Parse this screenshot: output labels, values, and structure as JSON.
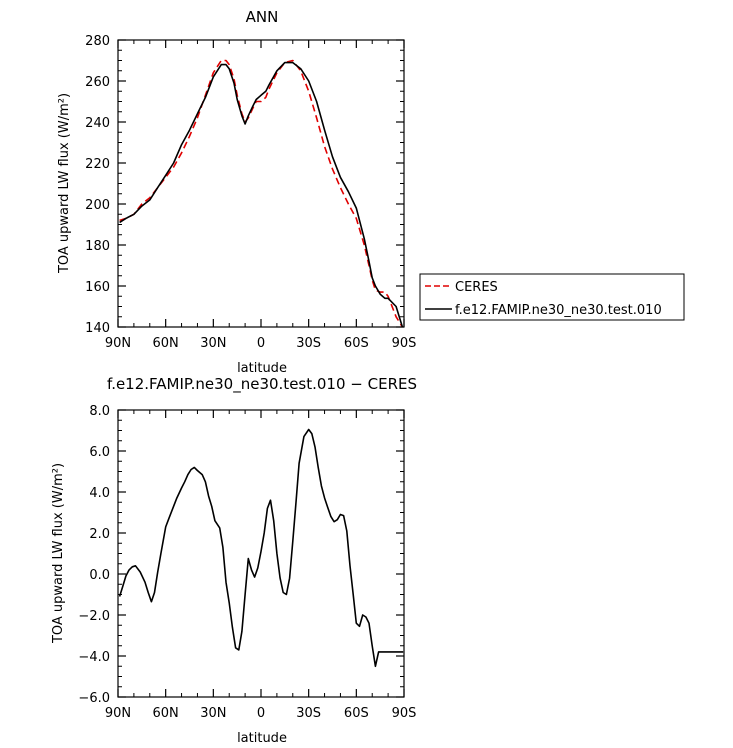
{
  "chart_data": [
    {
      "type": "line",
      "title": "ANN",
      "xlabel": "latitude",
      "ylabel": "TOA upward LW flux (W/m²)",
      "xlim": [
        90,
        -90
      ],
      "ylim": [
        140,
        280
      ],
      "x_ticks": [
        {
          "value": 90,
          "label": "90N"
        },
        {
          "value": 60,
          "label": "60N"
        },
        {
          "value": 30,
          "label": "30N"
        },
        {
          "value": 0,
          "label": "0"
        },
        {
          "value": -30,
          "label": "30S"
        },
        {
          "value": -60,
          "label": "60S"
        },
        {
          "value": -90,
          "label": "90S"
        }
      ],
      "y_ticks": [
        {
          "value": 140,
          "label": "140"
        },
        {
          "value": 160,
          "label": "160"
        },
        {
          "value": 180,
          "label": "180"
        },
        {
          "value": 200,
          "label": "200"
        },
        {
          "value": 220,
          "label": "220"
        },
        {
          "value": 240,
          "label": "240"
        },
        {
          "value": 260,
          "label": "260"
        },
        {
          "value": 280,
          "label": "280"
        }
      ],
      "legend_position": "right",
      "series": [
        {
          "name": "CERES",
          "color": "#e00000",
          "dash": "dashed",
          "x": [
            89,
            85,
            80,
            75,
            70,
            65,
            60,
            55,
            50,
            45,
            40,
            35,
            30,
            25,
            22,
            20,
            17,
            15,
            12,
            10,
            8,
            5,
            3,
            0,
            -3,
            -5,
            -10,
            -15,
            -20,
            -25,
            -30,
            -35,
            -40,
            -45,
            -50,
            -55,
            -60,
            -65,
            -68,
            -70,
            -72,
            -75,
            -78,
            -80,
            -85,
            -89
          ],
          "y": [
            192,
            193,
            195,
            200,
            203,
            208,
            213,
            218,
            225,
            233,
            242,
            253,
            264,
            270,
            270,
            268,
            261,
            253,
            244,
            240,
            242,
            247,
            250,
            250,
            252,
            256,
            264,
            269,
            270,
            265,
            255,
            242,
            228,
            217,
            208,
            200,
            193,
            180,
            170,
            163,
            158,
            157,
            157,
            155,
            145,
            140
          ]
        },
        {
          "name": "f.e12.FAMIP.ne30_ne30.test.010",
          "color": "#000000",
          "dash": "solid",
          "x": [
            89,
            85,
            80,
            75,
            70,
            65,
            60,
            55,
            50,
            45,
            40,
            35,
            30,
            25,
            22,
            20,
            17,
            15,
            12,
            10,
            8,
            5,
            3,
            0,
            -3,
            -5,
            -10,
            -15,
            -20,
            -25,
            -30,
            -35,
            -40,
            -45,
            -50,
            -55,
            -60,
            -65,
            -68,
            -70,
            -72,
            -75,
            -78,
            -80,
            -85,
            -89
          ],
          "y": [
            191,
            193,
            195,
            199,
            202,
            208,
            214,
            220,
            229,
            236,
            244,
            252,
            262,
            268,
            268,
            266,
            259,
            251,
            243,
            239,
            243,
            248,
            251,
            253,
            255,
            258,
            265,
            269,
            269,
            266,
            260,
            250,
            236,
            223,
            213,
            206,
            198,
            183,
            172,
            164,
            160,
            156,
            154,
            154,
            150,
            140
          ]
        }
      ]
    },
    {
      "type": "line",
      "title": "f.e12.FAMIP.ne30_ne30.test.010 − CERES",
      "xlabel": "latitude",
      "ylabel": "TOA upward LW flux (W/m²)",
      "xlim": [
        90,
        -90
      ],
      "ylim": [
        -6,
        8
      ],
      "x_ticks": [
        {
          "value": 90,
          "label": "90N"
        },
        {
          "value": 60,
          "label": "60N"
        },
        {
          "value": 30,
          "label": "30N"
        },
        {
          "value": 0,
          "label": "0"
        },
        {
          "value": -30,
          "label": "30S"
        },
        {
          "value": -60,
          "label": "60S"
        },
        {
          "value": -90,
          "label": "90S"
        }
      ],
      "y_ticks": [
        {
          "value": -6,
          "label": "−6.0"
        },
        {
          "value": -4,
          "label": "−4.0"
        },
        {
          "value": -2,
          "label": "−2.0"
        },
        {
          "value": 0,
          "label": "0.0"
        },
        {
          "value": 2,
          "label": "2.0"
        },
        {
          "value": 4,
          "label": "4.0"
        },
        {
          "value": 6,
          "label": "6.0"
        },
        {
          "value": 8,
          "label": "8.0"
        }
      ],
      "series": [
        {
          "name": "",
          "color": "#000000",
          "dash": "solid",
          "x": [
            89,
            87,
            85,
            83,
            81,
            79,
            76,
            73,
            71,
            69,
            67,
            65,
            63,
            60,
            58,
            55,
            53,
            50,
            48,
            46,
            44,
            42,
            40,
            37,
            35,
            33,
            31,
            29,
            26,
            24,
            22,
            20,
            18,
            16,
            14,
            12,
            10,
            8,
            6,
            4,
            2,
            0,
            -2,
            -4,
            -6,
            -8,
            -10,
            -12,
            -14,
            -16,
            -18,
            -20,
            -22,
            -24,
            -27,
            -30,
            -32,
            -34,
            -36,
            -38,
            -40,
            -42,
            -44,
            -46,
            -48,
            -50,
            -52,
            -54,
            -56,
            -58,
            -60,
            -62,
            -64,
            -66,
            -68,
            -70,
            -72,
            -74,
            -76,
            -78,
            -80,
            -82,
            -84,
            -86,
            -88,
            -89.5
          ],
          "y": [
            -1.1,
            -0.6,
            -0.1,
            0.2,
            0.35,
            0.4,
            0.1,
            -0.4,
            -0.9,
            -1.35,
            -0.9,
            0.1,
            1.0,
            2.3,
            2.7,
            3.3,
            3.7,
            4.2,
            4.5,
            4.85,
            5.1,
            5.2,
            5.05,
            4.85,
            4.5,
            3.8,
            3.3,
            2.6,
            2.25,
            1.3,
            -0.4,
            -1.4,
            -2.6,
            -3.6,
            -3.7,
            -2.8,
            -1.0,
            0.75,
            0.2,
            -0.15,
            0.3,
            1.1,
            2.0,
            3.2,
            3.6,
            2.6,
            1.0,
            -0.2,
            -0.9,
            -1.0,
            -0.2,
            1.6,
            3.5,
            5.4,
            6.7,
            7.05,
            6.85,
            6.2,
            5.2,
            4.3,
            3.7,
            3.25,
            2.8,
            2.55,
            2.65,
            2.9,
            2.85,
            2.1,
            0.4,
            -1.0,
            -2.4,
            -2.55,
            -2.0,
            -2.1,
            -2.4,
            -3.5,
            -4.5,
            -3.8,
            -3.8,
            -3.8,
            -3.8,
            -3.8,
            -3.8,
            -3.8,
            -3.8,
            -3.8
          ]
        }
      ]
    }
  ]
}
